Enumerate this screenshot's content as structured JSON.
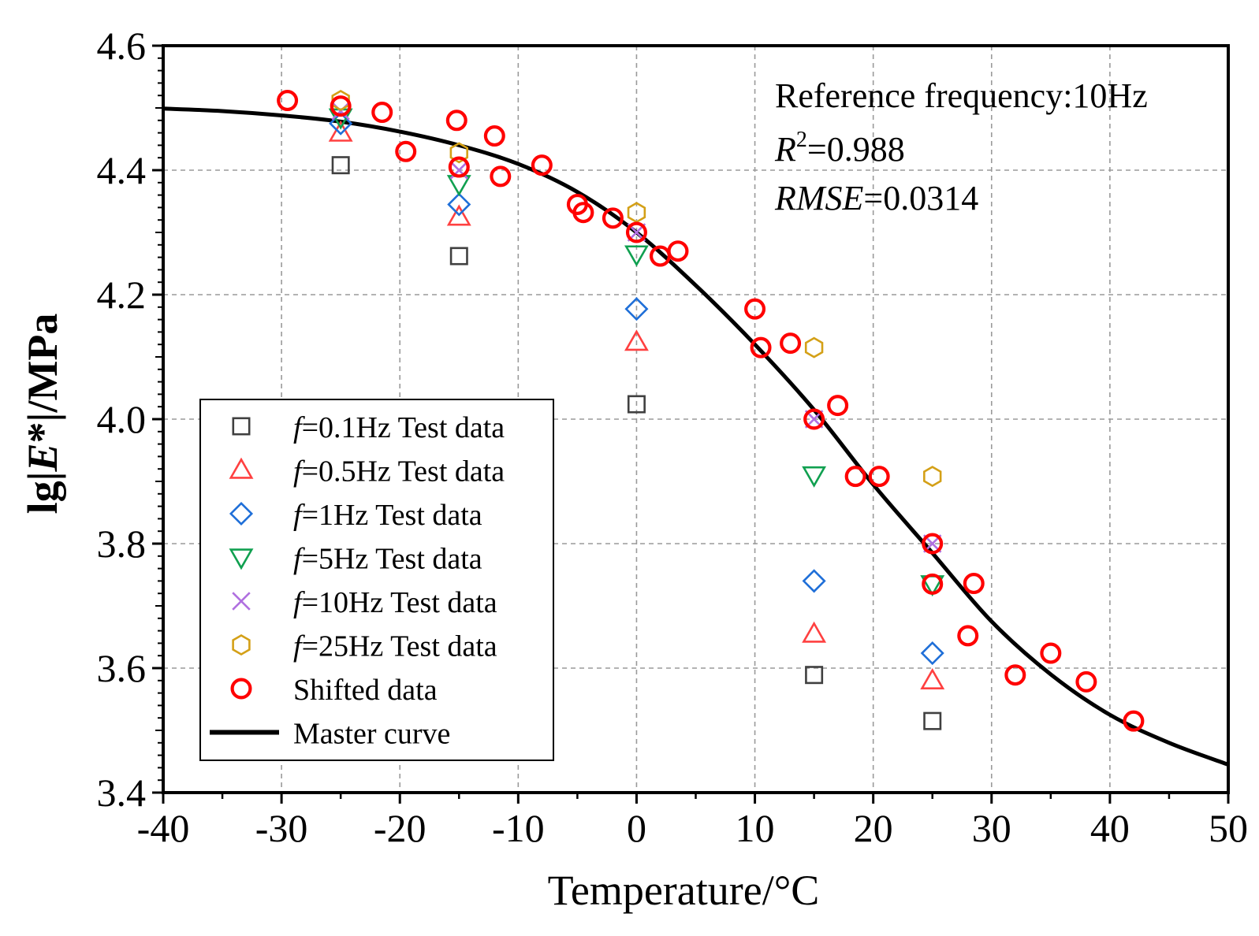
{
  "chart_data": {
    "type": "scatter",
    "xlabel": "Temperature/°C",
    "ylabel_parts": [
      "lg|",
      "E",
      "*|/MPa"
    ],
    "xlim": [
      -40,
      50
    ],
    "ylim": [
      3.4,
      4.6
    ],
    "xticks": [
      -40,
      -30,
      -20,
      -10,
      0,
      10,
      20,
      30,
      40,
      50
    ],
    "yticks": [
      3.4,
      3.6,
      3.8,
      4.0,
      4.2,
      4.4,
      4.6
    ],
    "xtick_labels": [
      "-40",
      "-30",
      "-20",
      "-10",
      "0",
      "10",
      "20",
      "30",
      "40",
      "50"
    ],
    "ytick_labels": [
      "3.4",
      "3.6",
      "3.8",
      "4.0",
      "4.2",
      "4.4",
      "4.6"
    ],
    "grid": true,
    "legend_position": "bottom-left",
    "annotations": {
      "reference": "Reference frequency:10Hz",
      "r2_label": "R",
      "r2_sup": "2",
      "r2_value": "=0.988",
      "rmse_label": "RMSE",
      "rmse_value": "=0.0314"
    },
    "series": [
      {
        "name": "f=0.1Hz Test data",
        "label_italic": "f",
        "label_rest": "=0.1Hz Test data",
        "marker": "square",
        "color": "#404040",
        "points": [
          [
            -25,
            4.408
          ],
          [
            -15,
            4.262
          ],
          [
            0,
            4.024
          ],
          [
            15,
            3.589
          ],
          [
            25,
            3.515
          ]
        ]
      },
      {
        "name": "f=0.5Hz Test data",
        "label_italic": "f",
        "label_rest": "=0.5Hz Test data",
        "marker": "triangle-up",
        "color": "#ff4040",
        "points": [
          [
            -25,
            4.46
          ],
          [
            -15,
            4.325
          ],
          [
            0,
            4.124
          ],
          [
            15,
            3.655
          ],
          [
            25,
            3.58
          ]
        ]
      },
      {
        "name": "f=1Hz Test data",
        "label_italic": "f",
        "label_rest": "=1Hz Test data",
        "marker": "diamond",
        "color": "#1f6fd8",
        "points": [
          [
            -25,
            4.475
          ],
          [
            -15,
            4.345
          ],
          [
            0,
            4.177
          ],
          [
            15,
            3.74
          ],
          [
            25,
            3.624
          ]
        ]
      },
      {
        "name": "f=5Hz Test data",
        "label_italic": "f",
        "label_rest": "=5Hz Test data",
        "marker": "triangle-down",
        "color": "#10a050",
        "points": [
          [
            -25,
            4.485
          ],
          [
            -15,
            4.378
          ],
          [
            0,
            4.265
          ],
          [
            15,
            3.91
          ],
          [
            25,
            3.735
          ]
        ]
      },
      {
        "name": "f=10Hz Test data",
        "label_italic": "f",
        "label_rest": "=10Hz Test data",
        "marker": "x",
        "color": "#b070e0",
        "points": [
          [
            -25,
            4.495
          ],
          [
            -15,
            4.4
          ],
          [
            0,
            4.3
          ],
          [
            15,
            4.0
          ],
          [
            25,
            3.8
          ]
        ]
      },
      {
        "name": "f=25Hz Test data",
        "label_italic": "f",
        "label_rest": "=25Hz Test data",
        "marker": "hexagon",
        "color": "#d4a017",
        "points": [
          [
            -25,
            4.512
          ],
          [
            -15,
            4.428
          ],
          [
            0,
            4.332
          ],
          [
            15,
            4.115
          ],
          [
            25,
            3.908
          ]
        ]
      },
      {
        "name": "Shifted data",
        "label_italic": "",
        "label_rest": "Shifted data",
        "marker": "circle",
        "color": "#ff0000",
        "points": [
          [
            -29.5,
            4.512
          ],
          [
            -25,
            4.503
          ],
          [
            -21.5,
            4.493
          ],
          [
            -19.5,
            4.43
          ],
          [
            -15.2,
            4.48
          ],
          [
            -15,
            4.405
          ],
          [
            -12,
            4.455
          ],
          [
            -11.5,
            4.39
          ],
          [
            -8,
            4.408
          ],
          [
            -5,
            4.345
          ],
          [
            -4.5,
            4.332
          ],
          [
            -2,
            4.323
          ],
          [
            0,
            4.3
          ],
          [
            2,
            4.262
          ],
          [
            3.5,
            4.27
          ],
          [
            10,
            4.177
          ],
          [
            10.5,
            4.115
          ],
          [
            13,
            4.122
          ],
          [
            15,
            4.0
          ],
          [
            17,
            4.022
          ],
          [
            18.5,
            3.908
          ],
          [
            20.5,
            3.908
          ],
          [
            25,
            3.8
          ],
          [
            25,
            3.735
          ],
          [
            28.5,
            3.736
          ],
          [
            28,
            3.652
          ],
          [
            32,
            3.589
          ],
          [
            35,
            3.624
          ],
          [
            38,
            3.578
          ],
          [
            42,
            3.515
          ]
        ]
      },
      {
        "name": "Master curve",
        "label_italic": "",
        "label_rest": "Master curve",
        "marker": "line",
        "color": "#000000",
        "points": [
          [
            -40,
            4.499
          ],
          [
            -35,
            4.495
          ],
          [
            -30,
            4.488
          ],
          [
            -25,
            4.478
          ],
          [
            -20,
            4.462
          ],
          [
            -15,
            4.44
          ],
          [
            -10,
            4.41
          ],
          [
            -5,
            4.365
          ],
          [
            0,
            4.3
          ],
          [
            5,
            4.215
          ],
          [
            10,
            4.12
          ],
          [
            15,
            4.015
          ],
          [
            20,
            3.895
          ],
          [
            25,
            3.785
          ],
          [
            30,
            3.675
          ],
          [
            35,
            3.59
          ],
          [
            40,
            3.525
          ],
          [
            45,
            3.48
          ],
          [
            50,
            3.445
          ]
        ]
      }
    ]
  }
}
